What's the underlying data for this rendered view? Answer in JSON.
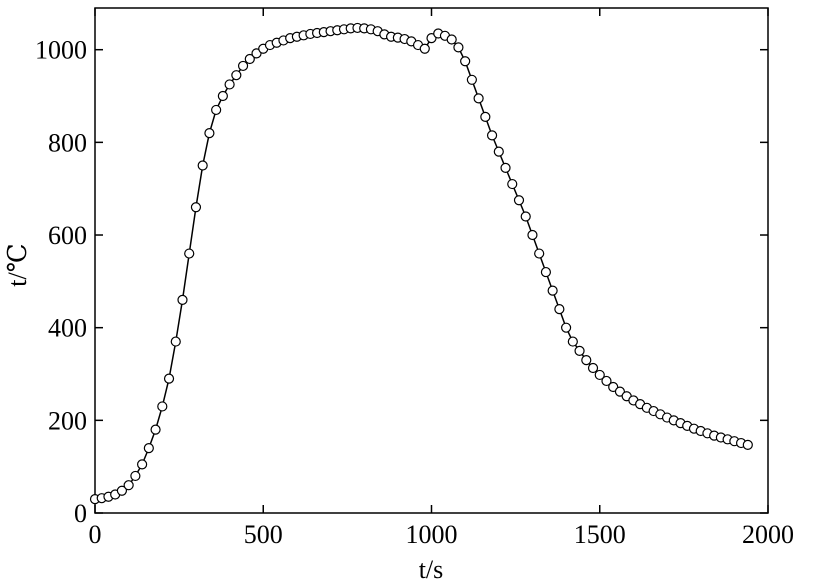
{
  "chart_data": {
    "type": "line",
    "xlabel": "t/s",
    "ylabel": "t/℃",
    "color": "#000000",
    "x": [
      0,
      20,
      40,
      60,
      80,
      100,
      120,
      140,
      160,
      180,
      200,
      220,
      240,
      260,
      280,
      300,
      320,
      340,
      360,
      380,
      400,
      420,
      440,
      460,
      480,
      500,
      520,
      540,
      560,
      580,
      600,
      620,
      640,
      660,
      680,
      700,
      720,
      740,
      760,
      780,
      800,
      820,
      840,
      860,
      880,
      900,
      920,
      940,
      960,
      980,
      1000,
      1020,
      1040,
      1060,
      1080,
      1100,
      1120,
      1140,
      1160,
      1180,
      1200,
      1220,
      1240,
      1260,
      1280,
      1300,
      1320,
      1340,
      1360,
      1380,
      1400,
      1420,
      1440,
      1460,
      1480,
      1500,
      1520,
      1540,
      1560,
      1580,
      1600,
      1620,
      1640,
      1660,
      1680,
      1700,
      1720,
      1740,
      1760,
      1780,
      1800,
      1820,
      1840,
      1860,
      1880,
      1900,
      1920,
      1940
    ],
    "values": [
      30,
      32,
      35,
      40,
      48,
      60,
      80,
      105,
      140,
      180,
      230,
      290,
      370,
      460,
      560,
      660,
      750,
      820,
      870,
      900,
      925,
      945,
      965,
      980,
      992,
      1002,
      1010,
      1015,
      1020,
      1025,
      1028,
      1031,
      1034,
      1036,
      1038,
      1040,
      1042,
      1044,
      1046,
      1047,
      1046,
      1044,
      1040,
      1033,
      1028,
      1026,
      1023,
      1018,
      1010,
      1002,
      1025,
      1035,
      1030,
      1022,
      1005,
      975,
      935,
      895,
      855,
      815,
      780,
      745,
      710,
      675,
      640,
      600,
      560,
      520,
      480,
      440,
      400,
      370,
      350,
      330,
      313,
      298,
      285,
      272,
      262,
      252,
      243,
      235,
      227,
      220,
      213,
      206,
      200,
      194,
      188,
      182,
      177,
      172,
      167,
      163,
      159,
      155,
      151,
      147
    ],
    "xlim": [
      0,
      2000
    ],
    "xticks": [
      0,
      500,
      1000,
      1500,
      2000
    ],
    "ylim": [
      0,
      1090
    ],
    "yticks": [
      0,
      200,
      400,
      600,
      800,
      1000
    ]
  }
}
